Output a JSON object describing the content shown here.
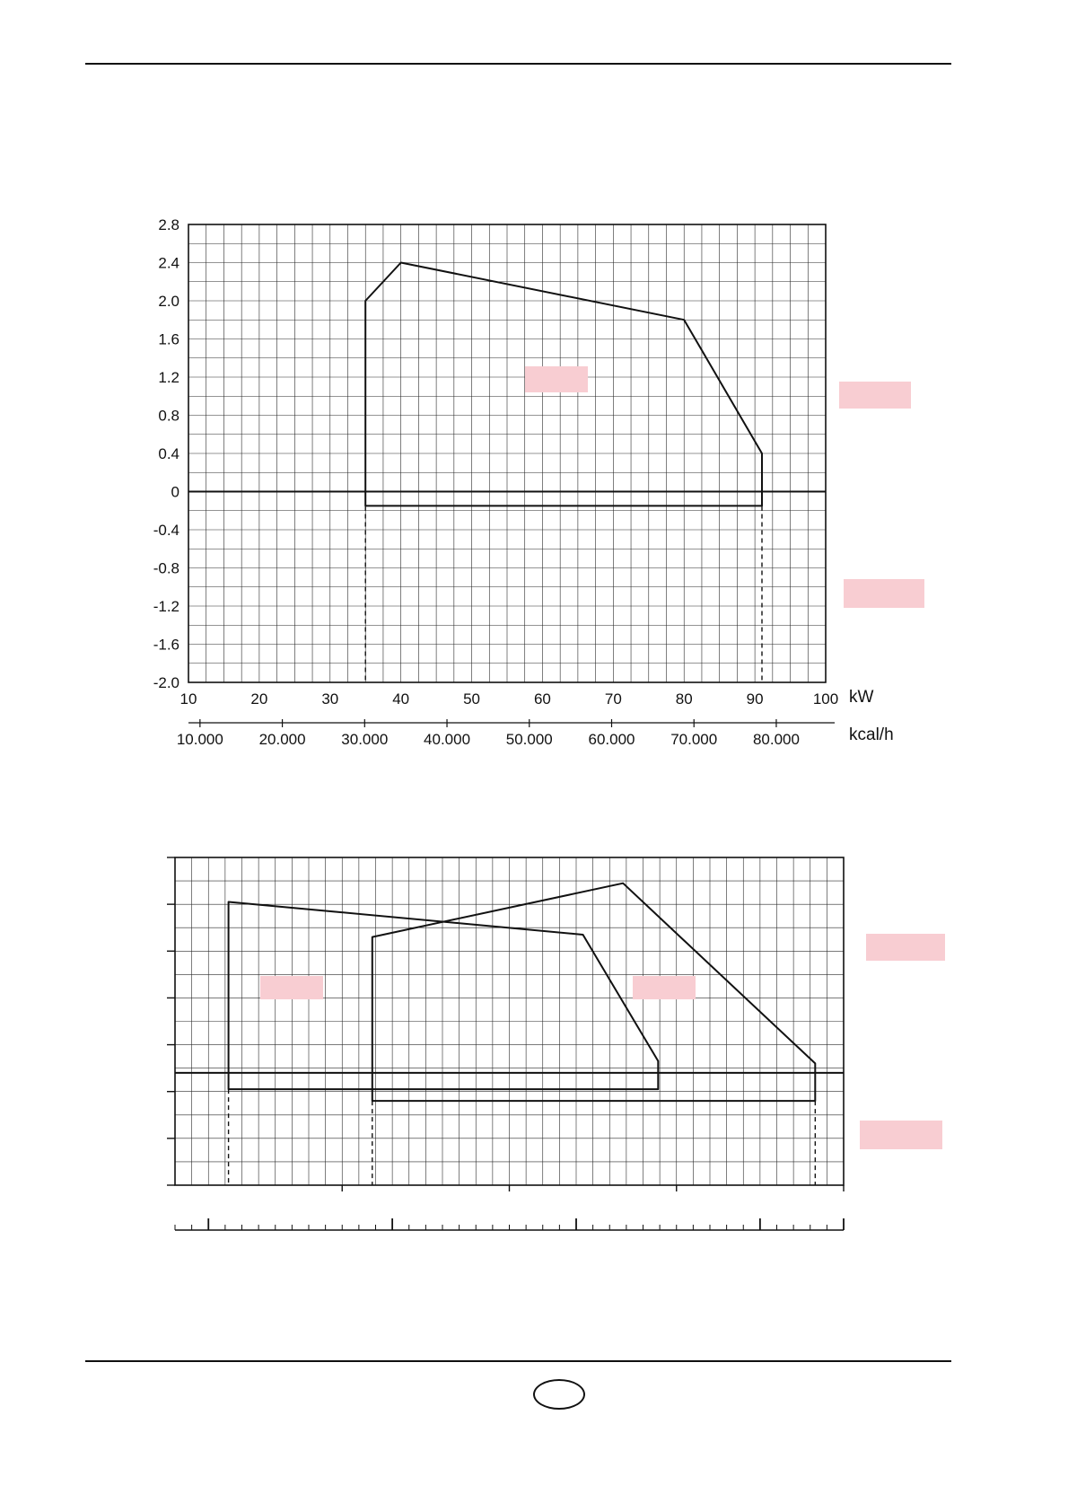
{
  "colors": {
    "ink": "#111111",
    "grid": "#2a2a2a",
    "redaction": "#f8cdd2",
    "background": "#ffffff"
  },
  "chart_data": [
    {
      "type": "area",
      "title": "",
      "xlabel": "kW",
      "x2label": "kcal/h",
      "ylabel": "",
      "xlim": [
        10,
        100
      ],
      "ylim": [
        -2.0,
        2.8
      ],
      "grid": true,
      "grid_step_x": 2.5,
      "grid_step_y": 0.2,
      "x_ticks": [
        10,
        20,
        30,
        40,
        50,
        60,
        70,
        80,
        90,
        100
      ],
      "y_ticks": [
        "2.8",
        "2.4",
        "2.0",
        "1.6",
        "1.2",
        "0.8",
        "0.4",
        "0",
        "-0.4",
        "-0.8",
        "-1.2",
        "-1.6",
        "-2.0"
      ],
      "x2_ticks": [
        {
          "label": "10.000",
          "kcal": 10000
        },
        {
          "label": "20.000",
          "kcal": 20000
        },
        {
          "label": "30.000",
          "kcal": 30000
        },
        {
          "label": "40.000",
          "kcal": 40000
        },
        {
          "label": "50.000",
          "kcal": 50000
        },
        {
          "label": "60.000",
          "kcal": 60000
        },
        {
          "label": "70.000",
          "kcal": 70000
        },
        {
          "label": "80.000",
          "kcal": 80000
        }
      ],
      "kcal_per_kw": 860,
      "zero_line": true,
      "working_field_polygon": [
        [
          35,
          2.0
        ],
        [
          40,
          2.4
        ],
        [
          80,
          1.8
        ],
        [
          91,
          0.4
        ],
        [
          91,
          -0.15
        ],
        [
          35,
          -0.15
        ]
      ],
      "dashed_vlines": [
        {
          "x": 35,
          "from_y": -0.15
        },
        {
          "x": 91,
          "from_y": -0.15
        }
      ]
    },
    {
      "type": "area",
      "title": "",
      "grid": true,
      "grid_cols": 40,
      "grid_rows": 14,
      "left_tick_every_rows": 2,
      "baseline_row": 9.2,
      "polygons": [
        [
          [
            3.2,
            1.9
          ],
          [
            24.4,
            3.3
          ],
          [
            28.9,
            8.7
          ],
          [
            28.9,
            9.9
          ],
          [
            3.2,
            9.9
          ]
        ],
        [
          [
            11.8,
            3.4
          ],
          [
            26.8,
            1.1
          ],
          [
            38.3,
            8.8
          ],
          [
            38.3,
            10.4
          ],
          [
            11.8,
            10.4
          ]
        ]
      ],
      "dashed_vlines": [
        {
          "col": 3.2,
          "from_row": 9.9
        },
        {
          "col": 11.8,
          "from_row": 10.4
        },
        {
          "col": 38.3,
          "from_row": 10.4
        }
      ],
      "bottom_edge_tick_cols": [
        10,
        20,
        30,
        40
      ],
      "ruler": {
        "minor_every_col": 1,
        "major_cols": [
          2,
          13,
          24,
          35,
          40
        ]
      }
    }
  ]
}
